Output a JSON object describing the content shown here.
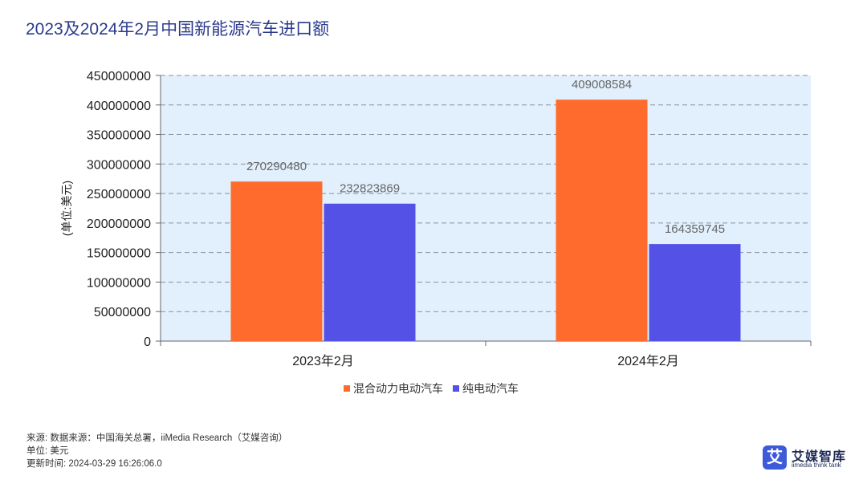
{
  "title": "2023及2024年2月中国新能源汽车进口额",
  "chart_data": {
    "type": "bar",
    "categories": [
      "2023年2月",
      "2024年2月"
    ],
    "series": [
      {
        "name": "混合动力电动汽车",
        "values": [
          270290480,
          409008584
        ],
        "color": "#ff6b2c"
      },
      {
        "name": "纯电动汽车",
        "values": [
          232823869,
          164359745
        ],
        "color": "#5451e6"
      }
    ],
    "ylabel": "(单位:美元)",
    "ylim": [
      0,
      450000000
    ],
    "yticks": [
      0,
      50000000,
      100000000,
      150000000,
      200000000,
      250000000,
      300000000,
      350000000,
      400000000,
      450000000
    ],
    "grid": true,
    "legend": "bottom",
    "plot_bg": "#e2f0fd"
  },
  "footer": {
    "source": "来源: 数据来源：中国海关总署，iiMedia Research（艾媒咨询）",
    "unit": "单位: 美元",
    "updated": "更新时间: 2024-03-29 16:26:06.0"
  },
  "logo": {
    "mark": "艾",
    "name": "艾媒智库",
    "sub": "iimedia think tank"
  }
}
